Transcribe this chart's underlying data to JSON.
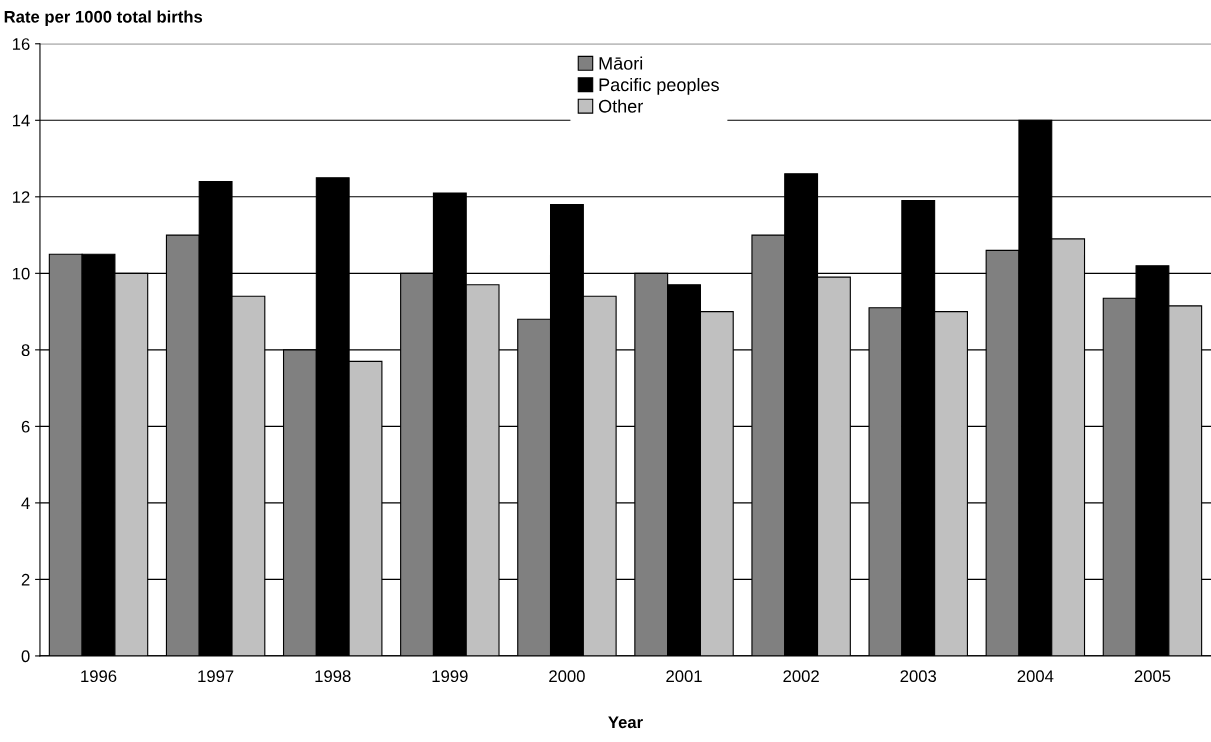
{
  "chart_data": {
    "type": "bar",
    "xlabel": "Year",
    "ylabel": "Rate per 1000 total births",
    "categories": [
      "1996",
      "1997",
      "1998",
      "1999",
      "2000",
      "2001",
      "2002",
      "2003",
      "2004",
      "2005"
    ],
    "series": [
      {
        "name": "Māori",
        "color": "#808080",
        "values": [
          10.5,
          11.0,
          8.0,
          10.0,
          8.8,
          10.0,
          11.0,
          9.1,
          10.6,
          9.35
        ]
      },
      {
        "name": "Pacific peoples",
        "color": "#000000",
        "values": [
          10.5,
          12.4,
          12.5,
          12.1,
          11.8,
          9.7,
          12.6,
          11.9,
          14.0,
          10.2
        ]
      },
      {
        "name": "Other",
        "color": "#c0c0c0",
        "values": [
          10.0,
          9.4,
          7.7,
          9.7,
          9.4,
          9.0,
          9.9,
          9.0,
          10.9,
          9.15
        ]
      }
    ],
    "ylim": [
      0,
      16
    ],
    "yticks": [
      0,
      2,
      4,
      6,
      8,
      10,
      12,
      14,
      16
    ],
    "grid": "y",
    "legend": "top"
  }
}
